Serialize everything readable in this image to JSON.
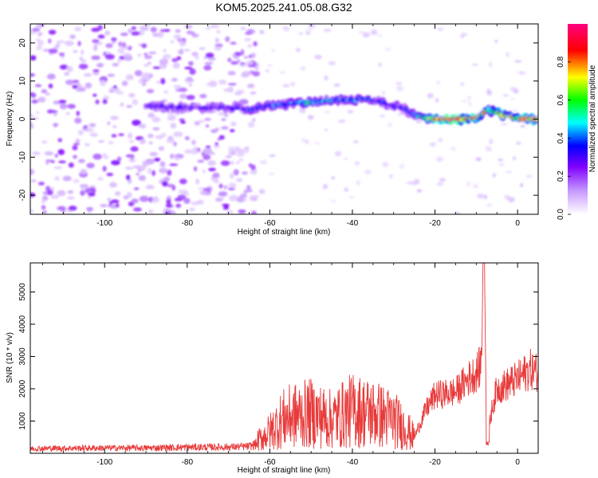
{
  "title": "KOM5.2025.241.05.08.G32",
  "chart_data": [
    {
      "type": "heatmap",
      "name": "spectrogram",
      "xlabel": "Height of straight line (km)",
      "ylabel": "Frequency (Hz)",
      "xlim": [
        -118,
        5
      ],
      "ylim": [
        -25,
        25
      ],
      "xticks": [
        -100,
        -80,
        -60,
        -40,
        -20,
        0
      ],
      "yticks": [
        -20,
        -10,
        0,
        10,
        20
      ],
      "noise_region_x": [
        -118,
        -63
      ],
      "signal_ridge": {
        "x": [
          -90,
          -80,
          -70,
          -65,
          -60,
          -55,
          -50,
          -45,
          -40,
          -37,
          -35,
          -30,
          -27,
          -25,
          -22,
          -20,
          -15,
          -10,
          -7,
          -5,
          -2,
          0,
          5
        ],
        "y": [
          3.5,
          3.0,
          3.0,
          2.5,
          3.5,
          4.0,
          4.5,
          5.0,
          5.0,
          5.5,
          5.0,
          3.5,
          2.5,
          1.0,
          0.2,
          0.0,
          0.0,
          0.3,
          2.5,
          1.5,
          0.5,
          0.0,
          0.0
        ],
        "amp": [
          0.3,
          0.3,
          0.35,
          0.35,
          0.45,
          0.45,
          0.5,
          0.45,
          0.45,
          0.4,
          0.4,
          0.35,
          0.35,
          0.4,
          0.7,
          0.85,
          0.95,
          0.9,
          0.6,
          0.7,
          0.75,
          0.85,
          0.85
        ]
      },
      "colorbar": {
        "label": "Normalized spectral amplitude",
        "ticks": [
          0.0,
          0.2,
          0.4,
          0.6,
          0.8
        ],
        "tick_labels": [
          "0.0",
          "0.2",
          "0.4",
          "0.6",
          "0.8"
        ],
        "colors": [
          "#ffffff",
          "#8000ff",
          "#0000ff",
          "#00ffff",
          "#00ff00",
          "#ffff00",
          "#ff0000",
          "#ff00aa"
        ]
      }
    },
    {
      "type": "line",
      "name": "snr",
      "xlabel": "Height of straight line (km)",
      "ylabel": "SNR (10 * v/v)",
      "xlim": [
        -118,
        5
      ],
      "ylim": [
        0,
        5900
      ],
      "xticks": [
        -100,
        -80,
        -60,
        -40,
        -20,
        0
      ],
      "yticks": [
        1000,
        2000,
        3000,
        4000,
        5000
      ],
      "color": "#e83a3a",
      "envelope_x": [
        -118,
        -100,
        -90,
        -80,
        -70,
        -65,
        -63,
        -60,
        -57,
        -55,
        -50,
        -45,
        -40,
        -35,
        -30,
        -27,
        -25,
        -22,
        -20,
        -15,
        -12,
        -10,
        -9,
        -8,
        -7.5,
        -7,
        -6,
        -5,
        -3,
        0,
        3,
        5
      ],
      "envelope_y": [
        200,
        220,
        220,
        250,
        260,
        280,
        400,
        700,
        1100,
        1200,
        1300,
        1100,
        1400,
        1300,
        1100,
        800,
        500,
        1400,
        1800,
        1900,
        2300,
        2500,
        2700,
        4000,
        2000,
        800,
        1500,
        2000,
        2100,
        2300,
        2600,
        2500
      ],
      "spike": {
        "x": -8.2,
        "y": 5800
      }
    }
  ]
}
